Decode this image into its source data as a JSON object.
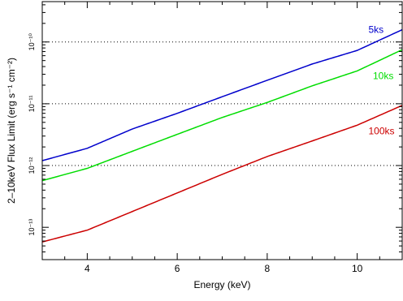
{
  "chart_data": {
    "type": "line",
    "xlabel": "Energy (keV)",
    "ylabel": "2–10keV Flux Limit (erg s⁻¹ cm⁻²)",
    "y_scale": "log",
    "xlim": [
      3.0,
      11.0
    ],
    "ylim": [
      3e-14,
      4.5e-10
    ],
    "x_ticks": [
      4,
      6,
      8,
      10
    ],
    "x_tick_labels": [
      "4",
      "6",
      "8",
      "10"
    ],
    "y_ticks": [
      1e-13,
      1e-12,
      1e-11,
      1e-10
    ],
    "y_tick_labels": [
      "10⁻¹³",
      "10⁻¹²",
      "10⁻¹¹",
      "10⁻¹⁰"
    ],
    "reference_lines": [
      1e-12,
      1e-11,
      1e-10
    ],
    "series": [
      {
        "name": "5ks",
        "color": "#0000cc",
        "x": [
          3.0,
          4.0,
          5.0,
          6.0,
          7.0,
          8.0,
          9.0,
          10.0,
          11.0
        ],
        "y": [
          1.2e-12,
          1.9e-12,
          3.9e-12,
          7e-12,
          1.3e-11,
          2.4e-11,
          4.4e-11,
          7.3e-11,
          1.58e-10
        ]
      },
      {
        "name": "10ks",
        "color": "#00dd00",
        "x": [
          3.0,
          4.0,
          5.0,
          6.0,
          7.0,
          8.0,
          9.0,
          10.0,
          11.0
        ],
        "y": [
          5.7e-13,
          9e-13,
          1.7e-12,
          3.2e-12,
          6e-12,
          1.05e-11,
          1.95e-11,
          3.4e-11,
          7.5e-11
        ]
      },
      {
        "name": "100ks",
        "color": "#cc0000",
        "x": [
          3.0,
          4.0,
          5.0,
          6.0,
          7.0,
          8.0,
          9.0,
          10.0,
          11.0
        ],
        "y": [
          5.8e-14,
          9e-14,
          1.8e-13,
          3.6e-13,
          7.2e-13,
          1.4e-12,
          2.5e-12,
          4.5e-12,
          9.4e-12
        ]
      }
    ]
  }
}
